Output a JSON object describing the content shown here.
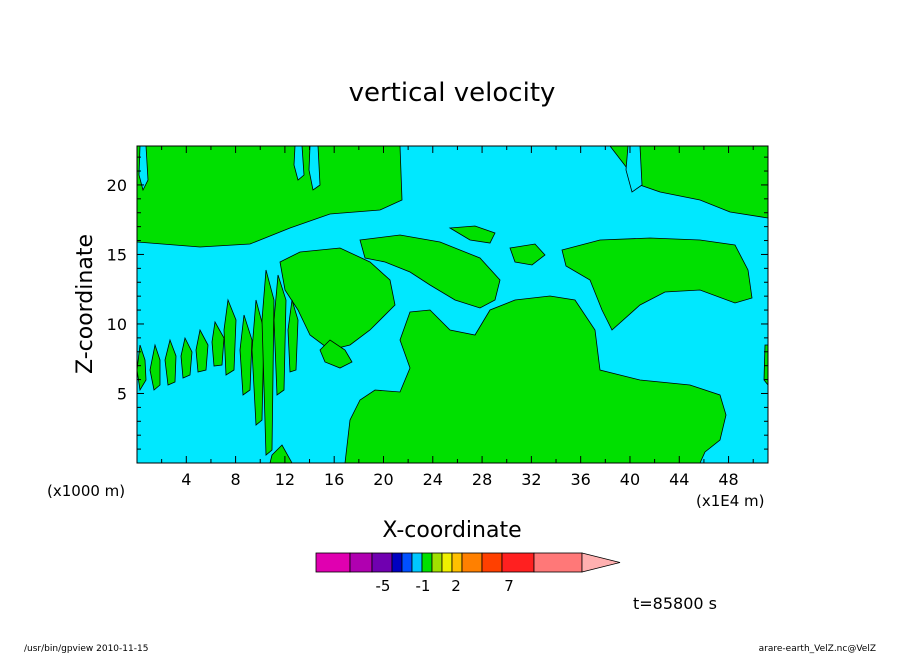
{
  "chart_data": {
    "type": "heatmap",
    "title": "vertical velocity",
    "xlabel": "X-coordinate",
    "ylabel": "Z-coordinate",
    "x_unit_left": "(x1000 m)",
    "x_unit_right": "(x1E4 m)",
    "x_ticks": [
      "4",
      "8",
      "12",
      "16",
      "20",
      "24",
      "28",
      "32",
      "36",
      "40",
      "44",
      "48"
    ],
    "y_ticks": [
      "5",
      "10",
      "15",
      "20"
    ],
    "xlim": [
      0,
      51.2
    ],
    "ylim": [
      0,
      22.8
    ],
    "colorbar": {
      "colors": [
        "#e000b0",
        "#b000b0",
        "#7000b0",
        "#0000c0",
        "#0050ff",
        "#00c8ff",
        "#00e000",
        "#a0e000",
        "#f0f000",
        "#ffc000",
        "#ff8000",
        "#ff4000",
        "#ff2020",
        "#ff7878",
        "#ffb0b0"
      ],
      "tick_labels": [
        "-5",
        "-1",
        "2",
        "7"
      ]
    },
    "regions": {
      "background_color": "#00e8ff",
      "fill_color": "#00e000"
    },
    "time_label": "t=85800 s"
  },
  "footer": {
    "left": "/usr/bin/gpview  2010-11-15",
    "right": "arare-earth_VelZ.nc@VelZ"
  }
}
